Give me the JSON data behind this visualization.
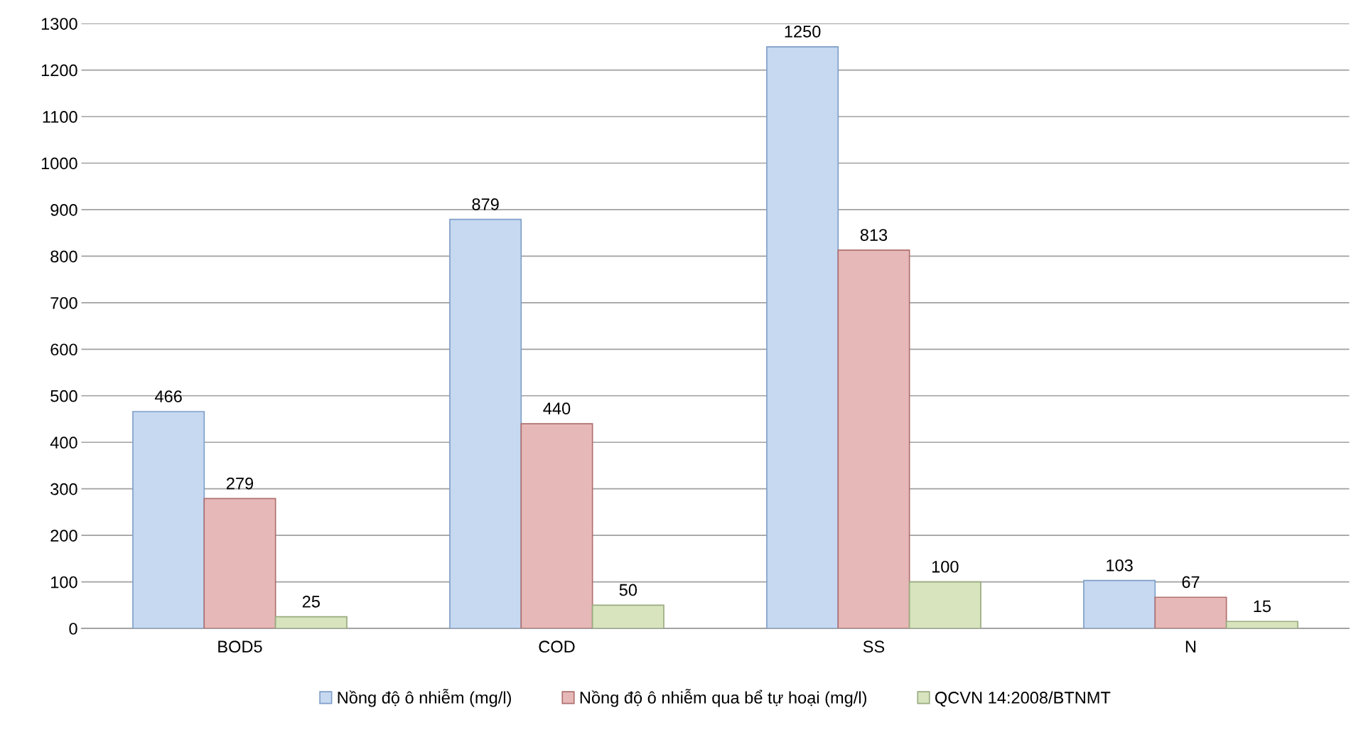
{
  "chart_data": {
    "type": "bar",
    "categories": [
      "BOD5",
      "COD",
      "SS",
      "N"
    ],
    "series": [
      {
        "name": "Nồng độ ô nhiễm (mg/l)",
        "color": "#c6d9f1",
        "values": [
          466,
          879,
          1250,
          103
        ]
      },
      {
        "name": "Nồng độ ô nhiễm qua bể tự hoại (mg/l)",
        "color": "#e6b9b8",
        "values": [
          279,
          440,
          813,
          67
        ]
      },
      {
        "name": "QCVN 14:2008/BTNMT",
        "color": "#d7e4bd",
        "values": [
          25,
          50,
          100,
          15
        ]
      }
    ],
    "ylim": [
      0,
      1300
    ],
    "yticks": [
      0,
      100,
      200,
      300,
      400,
      500,
      600,
      700,
      800,
      900,
      1000,
      1100,
      1200,
      1300
    ],
    "grid": "y",
    "legend": "bottom",
    "data_labels": true
  }
}
